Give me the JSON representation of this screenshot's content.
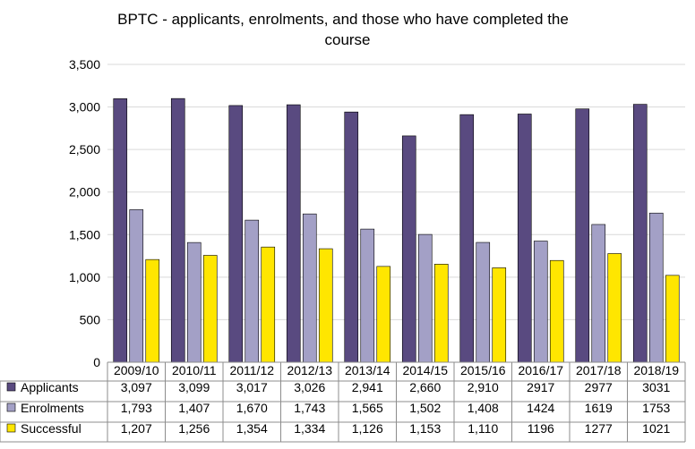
{
  "chart_data": {
    "type": "bar",
    "title_line1": "BPTC - applicants, enrolments, and those who have completed the",
    "title_line2": "course",
    "categories": [
      "2009/10",
      "2010/11",
      "2011/12",
      "2012/13",
      "2013/14",
      "2014/15",
      "2015/16",
      "2016/17",
      "2017/18",
      "2018/19"
    ],
    "ylim": [
      0,
      3500
    ],
    "yticks": [
      0,
      500,
      1000,
      1500,
      2000,
      2500,
      3000,
      3500
    ],
    "ytick_labels": [
      "0",
      "500",
      "1,000",
      "1,500",
      "2,000",
      "2,500",
      "3,000",
      "3,500"
    ],
    "grid": true,
    "legend_placement": "data-table",
    "series": [
      {
        "name": "Applicants",
        "color": "#594a80",
        "values": [
          3097,
          3099,
          3017,
          3026,
          2941,
          2660,
          2910,
          2917,
          2977,
          3031
        ],
        "labels": [
          "3,097",
          "3,099",
          "3,017",
          "3,026",
          "2,941",
          "2,660",
          "2,910",
          "2917",
          "2977",
          "3031"
        ]
      },
      {
        "name": "Enrolments",
        "color": "#a3a0c6",
        "values": [
          1793,
          1407,
          1670,
          1743,
          1565,
          1502,
          1408,
          1424,
          1619,
          1753
        ],
        "labels": [
          "1,793",
          "1,407",
          "1,670",
          "1,743",
          "1,565",
          "1,502",
          "1,408",
          "1424",
          "1619",
          "1753"
        ]
      },
      {
        "name": "Successful",
        "color": "#ffe600",
        "values": [
          1207,
          1256,
          1354,
          1334,
          1126,
          1153,
          1110,
          1196,
          1277,
          1021
        ],
        "labels": [
          "1,207",
          "1,256",
          "1,354",
          "1,334",
          "1,126",
          "1,153",
          "1,110",
          "1196",
          "1277",
          "1021"
        ]
      }
    ]
  }
}
